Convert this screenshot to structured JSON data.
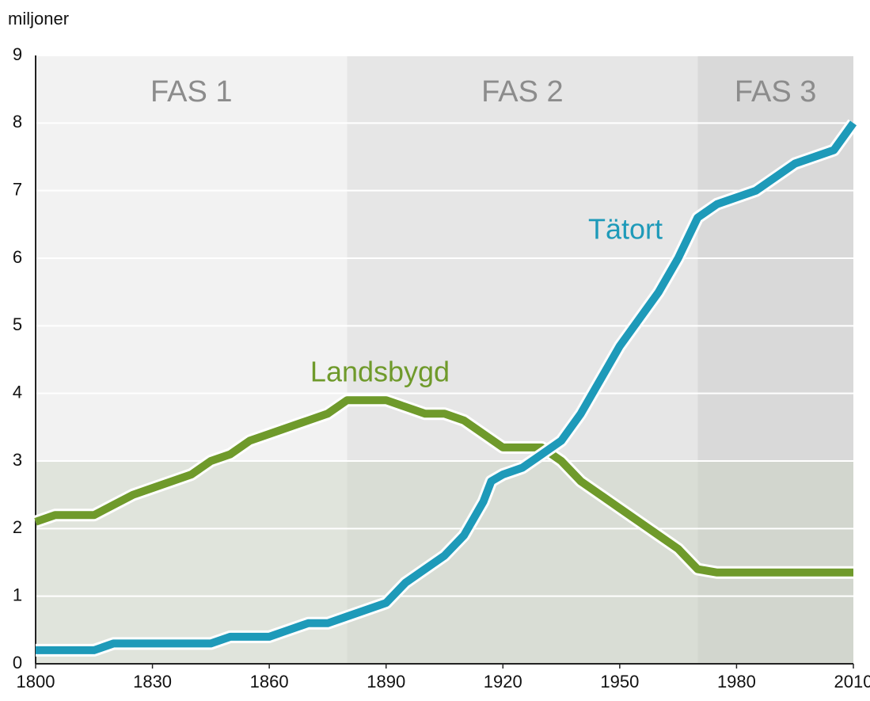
{
  "chart_data": {
    "type": "line",
    "y_label": "miljoner",
    "xlim": [
      1800,
      2010
    ],
    "xticks": [
      1800,
      1830,
      1860,
      1890,
      1920,
      1950,
      1980,
      2010
    ],
    "ylim": [
      0,
      9
    ],
    "yticks": [
      0,
      1,
      2,
      3,
      4,
      5,
      6,
      7,
      8,
      9
    ],
    "grid": true,
    "phases": [
      {
        "label": "FAS 1",
        "start": 1800,
        "end": 1880,
        "color": "#f2f2f2"
      },
      {
        "label": "FAS 2",
        "start": 1880,
        "end": 1970,
        "color": "#e6e6e6"
      },
      {
        "label": "FAS 3",
        "start": 1970,
        "end": 2010,
        "color": "#d9d9d9"
      }
    ],
    "series": [
      {
        "name": "Landsbygd",
        "color": "#6f9a2b",
        "x": [
          1800,
          1805,
          1815,
          1820,
          1825,
          1830,
          1840,
          1845,
          1850,
          1855,
          1860,
          1870,
          1875,
          1880,
          1890,
          1900,
          1905,
          1910,
          1920,
          1930,
          1935,
          1940,
          1950,
          1960,
          1965,
          1970,
          1975,
          2010
        ],
        "values": [
          2.1,
          2.2,
          2.2,
          2.35,
          2.5,
          2.6,
          2.8,
          3.0,
          3.1,
          3.3,
          3.4,
          3.6,
          3.7,
          3.9,
          3.9,
          3.7,
          3.7,
          3.6,
          3.2,
          3.2,
          3.0,
          2.7,
          2.3,
          1.9,
          1.7,
          1.4,
          1.35,
          1.35
        ]
      },
      {
        "name": "Tätort",
        "color": "#1e9ab9",
        "x": [
          1800,
          1815,
          1820,
          1845,
          1850,
          1860,
          1865,
          1870,
          1875,
          1880,
          1890,
          1895,
          1900,
          1905,
          1910,
          1915,
          1917,
          1920,
          1925,
          1930,
          1935,
          1940,
          1945,
          1950,
          1955,
          1960,
          1965,
          1970,
          1975,
          1985,
          1995,
          2005,
          2010
        ],
        "values": [
          0.2,
          0.2,
          0.3,
          0.3,
          0.4,
          0.4,
          0.5,
          0.6,
          0.6,
          0.7,
          0.9,
          1.2,
          1.4,
          1.6,
          1.9,
          2.4,
          2.7,
          2.8,
          2.9,
          3.1,
          3.3,
          3.7,
          4.2,
          4.7,
          5.1,
          5.5,
          6.0,
          6.6,
          6.8,
          7.0,
          7.4,
          7.6,
          8.0
        ]
      }
    ]
  }
}
